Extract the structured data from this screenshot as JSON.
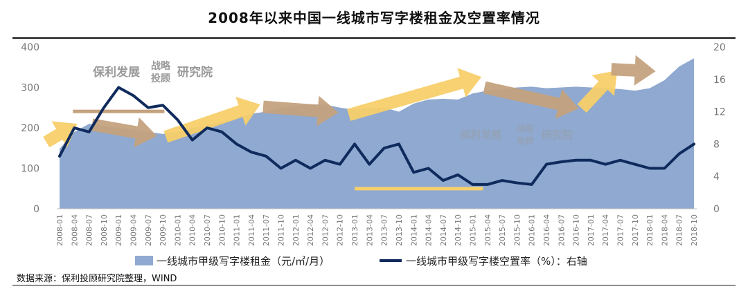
{
  "title": "2008年以来中国一线城市写字楼租金及空置率情况",
  "source": "数据来源：保利投顾研究院整理，WIND",
  "watermark": {
    "part1": "保利发展",
    "part2_top": "战略",
    "part2_bottom": "投顾",
    "part3": "研究院"
  },
  "colors": {
    "rent_area": "#8fa9d0",
    "vacancy_line": "#0f2a5c",
    "arrow_yellow": "#f7cf6a",
    "arrow_brown": "#c4a27e",
    "flat_bar_brown": "#c4a27e",
    "flat_bar_yellow": "#f5cf6b"
  },
  "chart_data": {
    "type": "area+line",
    "title": "2008年以来中国一线城市写字楼租金及空置率情况",
    "y_left": {
      "min": 0,
      "max": 400,
      "ticks": [
        "0",
        "100",
        "200",
        "300",
        "400"
      ]
    },
    "y_right": {
      "min": 0,
      "max": 20,
      "ticks": [
        "0",
        "4",
        "8",
        "12",
        "16",
        "20"
      ]
    },
    "x_ticks": [
      "2008-01",
      "2008-04",
      "2008-07",
      "2008-10",
      "2009-01",
      "2009-04",
      "2009-07",
      "2009-10",
      "2010-01",
      "2010-04",
      "2010-07",
      "2010-10",
      "2011-01",
      "2011-04",
      "2011-07",
      "2011-10",
      "2012-01",
      "2012-04",
      "2012-07",
      "2012-10",
      "2013-01",
      "2013-04",
      "2013-07",
      "2013-10",
      "2014-01",
      "2014-04",
      "2014-07",
      "2014-10",
      "2015-01",
      "2015-04",
      "2015-07",
      "2015-10",
      "2016-01",
      "2016-04",
      "2016-07",
      "2016-10",
      "2017-01",
      "2017-04",
      "2017-07",
      "2017-10",
      "2018-01",
      "2018-04",
      "2018-07",
      "2018-10"
    ],
    "series": [
      {
        "name": "一线城市甲级写字楼租金（元/㎡/月）",
        "axis": "left",
        "kind": "area",
        "values": [
          148,
          190,
          210,
          205,
          200,
          195,
          190,
          185,
          190,
          200,
          205,
          215,
          225,
          235,
          240,
          250,
          255,
          258,
          258,
          250,
          245,
          248,
          250,
          240,
          260,
          270,
          272,
          270,
          285,
          292,
          296,
          300,
          302,
          298,
          300,
          302,
          300,
          298,
          296,
          292,
          298,
          318,
          352,
          372
        ]
      },
      {
        "name": "一线城市甲级写字楼空置率（%）：右轴",
        "axis": "right",
        "kind": "line",
        "values": [
          6.5,
          10,
          9.5,
          12.5,
          15,
          14,
          12.5,
          12.8,
          11,
          8.5,
          10,
          9.5,
          8,
          7,
          6.5,
          5,
          6,
          5,
          6,
          5.5,
          8,
          5.5,
          7.5,
          8,
          4.5,
          5,
          3.5,
          4.2,
          3,
          3,
          3.5,
          3.2,
          3,
          5.5,
          5.8,
          6,
          6,
          5.5,
          6,
          5.5,
          5,
          5,
          6.8,
          8
        ]
      }
    ],
    "legend": {
      "position": "bottom"
    }
  }
}
